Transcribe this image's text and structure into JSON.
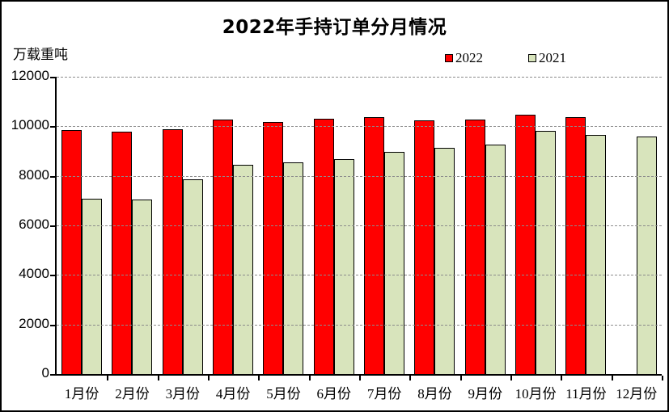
{
  "header": {
    "title": "2022年手持订单分月情况",
    "unit_label": "万载重吨"
  },
  "chart_data": {
    "type": "bar",
    "title": "2022年手持订单分月情况",
    "ylabel": "万载重吨",
    "xlabel": "",
    "categories": [
      "1月份",
      "2月份",
      "3月份",
      "4月份",
      "5月份",
      "6月份",
      "7月份",
      "8月份",
      "9月份",
      "10月份",
      "11月份",
      "12月份"
    ],
    "series": [
      {
        "name": "2022",
        "color": "#ff0000",
        "values": [
          9840,
          9780,
          9870,
          10260,
          10190,
          10310,
          10380,
          10230,
          10260,
          10460,
          10380,
          null
        ]
      },
      {
        "name": "2021",
        "color": "#d8e4bc",
        "values": [
          7090,
          7030,
          7850,
          8450,
          8530,
          8660,
          8970,
          9130,
          9260,
          9810,
          9640,
          9600
        ]
      }
    ],
    "ylim": [
      0,
      12000
    ],
    "ytick_step": 2000,
    "yticks": [
      0,
      2000,
      4000,
      6000,
      8000,
      10000,
      12000
    ],
    "grid": "horizontal-dashed",
    "legend_position": "top-right",
    "bar_border_color": "#000000",
    "gridline_color": "#8c8c8c"
  }
}
